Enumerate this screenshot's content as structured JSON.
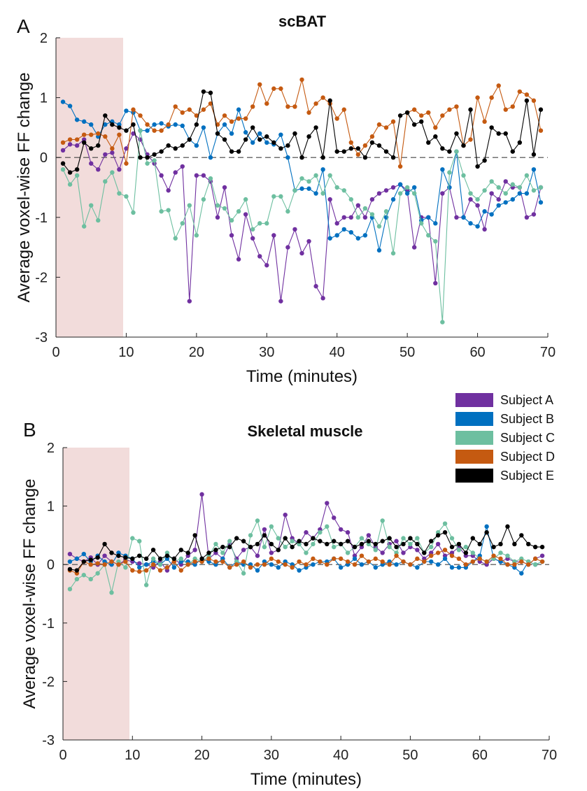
{
  "legend": [
    {
      "name": "Subject A",
      "color": "#7030A0"
    },
    {
      "name": "Subject B",
      "color": "#0070C0"
    },
    {
      "name": "Subject C",
      "color": "#6DBFA0"
    },
    {
      "name": "Subject D",
      "color": "#C55A11"
    },
    {
      "name": "Subject E",
      "color": "#000000"
    }
  ],
  "chart_data": [
    {
      "panel_letter": "A",
      "type": "line",
      "title": "scBAT",
      "xlabel": "Time (minutes)",
      "ylabel": "Average voxel-wise FF change",
      "xlim": [
        0,
        70
      ],
      "ylim": [
        -3,
        2
      ],
      "xticks": [
        0,
        10,
        20,
        30,
        40,
        50,
        60,
        70
      ],
      "yticks": [
        -3,
        -2,
        -1,
        0,
        1,
        2
      ],
      "shaded_region_x": [
        0,
        10
      ],
      "reference_line_y": 0,
      "x": [
        1,
        2,
        3,
        4,
        5,
        6,
        7,
        8,
        9,
        10,
        11,
        12,
        13,
        14,
        15,
        16,
        17,
        18,
        19,
        20,
        21,
        22,
        23,
        24,
        25,
        26,
        27,
        28,
        29,
        30,
        31,
        32,
        33,
        34,
        35,
        36,
        37,
        38,
        39,
        40,
        41,
        42,
        43,
        44,
        45,
        46,
        47,
        48,
        49,
        50,
        51,
        52,
        53,
        54,
        55,
        56,
        57,
        58,
        59,
        60,
        61,
        62,
        63,
        64,
        65,
        66,
        67,
        68,
        69
      ],
      "series": [
        {
          "name": "Subject A",
          "values": [
            0.12,
            0.22,
            0.2,
            0.3,
            -0.1,
            -0.2,
            0.05,
            0.08,
            -0.2,
            0.15,
            0.4,
            0.3,
            0.05,
            -0.1,
            -0.3,
            -0.55,
            -0.25,
            -0.15,
            -2.4,
            -0.3,
            -0.3,
            -0.4,
            -1.0,
            -0.5,
            -1.3,
            -1.7,
            -0.95,
            -1.35,
            -1.65,
            -1.8,
            -1.3,
            -2.4,
            -1.5,
            -1.2,
            -1.6,
            -1.4,
            -2.15,
            -2.35,
            -0.7,
            -1.1,
            -1.0,
            -1.0,
            -0.8,
            -1.0,
            -0.7,
            -0.6,
            -0.55,
            -0.5,
            -0.45,
            -0.55,
            -1.5,
            -1.0,
            -1.0,
            -2.1,
            -0.6,
            -0.5,
            -1.0,
            -1.0,
            -0.7,
            -0.8,
            -1.2,
            -0.6,
            -0.7,
            -0.4,
            -0.5,
            -0.5,
            -1.0,
            -0.95,
            -0.5
          ]
        },
        {
          "name": "Subject B",
          "values": [
            0.93,
            0.86,
            0.63,
            0.6,
            0.55,
            0.35,
            0.55,
            0.6,
            0.55,
            0.78,
            0.75,
            0.45,
            0.45,
            0.55,
            0.57,
            0.52,
            0.55,
            0.53,
            0.3,
            0.2,
            0.5,
            0.0,
            0.4,
            0.55,
            0.4,
            0.8,
            0.42,
            0.25,
            0.4,
            0.25,
            0.22,
            0.38,
            0.0,
            -0.55,
            -0.52,
            -0.52,
            -0.6,
            -0.2,
            -1.35,
            -1.3,
            -1.2,
            -1.25,
            -1.35,
            -1.3,
            -1.0,
            -1.55,
            -1.0,
            -0.7,
            -0.45,
            -0.6,
            -0.5,
            -1.05,
            -1.0,
            -1.1,
            -0.2,
            -0.5,
            0.1,
            -1.0,
            -1.1,
            -1.15,
            -0.9,
            -0.95,
            -0.8,
            -0.75,
            -0.7,
            -0.6,
            -0.6,
            -0.2,
            -0.75
          ]
        },
        {
          "name": "Subject C",
          "values": [
            -0.2,
            -0.45,
            -0.3,
            -1.15,
            -0.8,
            -1.05,
            -0.4,
            -0.25,
            -0.6,
            -0.65,
            -0.92,
            0.45,
            -0.1,
            -0.05,
            -0.9,
            -0.88,
            -1.35,
            -1.1,
            -0.8,
            -1.3,
            -0.7,
            -0.35,
            -0.8,
            -0.85,
            -1.05,
            -0.9,
            -0.7,
            -1.2,
            -1.1,
            -1.1,
            -0.65,
            -0.65,
            -0.9,
            -0.55,
            -0.35,
            -0.4,
            -0.3,
            -0.6,
            -0.3,
            -0.5,
            -0.55,
            -0.7,
            -1.0,
            -0.85,
            -0.95,
            -1.15,
            -0.9,
            -1.6,
            -0.6,
            -0.5,
            -0.6,
            -1.1,
            -1.3,
            -1.4,
            -2.75,
            -0.25,
            0.1,
            -0.3,
            -0.6,
            -0.7,
            -0.55,
            -0.4,
            -0.5,
            -0.6,
            -0.45,
            -0.5,
            -0.3,
            -0.55,
            -0.5
          ]
        },
        {
          "name": "Subject D",
          "values": [
            0.25,
            0.3,
            0.3,
            0.38,
            0.38,
            0.4,
            0.35,
            0.15,
            0.38,
            -0.1,
            0.8,
            0.7,
            0.55,
            0.45,
            0.45,
            0.55,
            0.85,
            0.75,
            0.8,
            0.7,
            0.8,
            0.9,
            0.55,
            0.7,
            0.6,
            0.65,
            0.65,
            0.85,
            1.22,
            0.9,
            1.15,
            1.15,
            0.85,
            0.85,
            1.3,
            0.75,
            0.9,
            1.0,
            0.9,
            0.65,
            0.8,
            0.25,
            0.05,
            0.2,
            0.35,
            0.55,
            0.5,
            0.6,
            -0.15,
            0.75,
            0.8,
            0.7,
            0.75,
            0.5,
            0.7,
            0.8,
            0.85,
            0.2,
            0.3,
            1.0,
            0.6,
            1.0,
            1.2,
            0.8,
            0.85,
            1.1,
            1.05,
            0.95,
            0.45
          ]
        },
        {
          "name": "Subject E",
          "values": [
            -0.1,
            -0.25,
            -0.2,
            0.25,
            0.15,
            0.2,
            0.7,
            0.55,
            0.5,
            0.45,
            0.55,
            0.0,
            0.0,
            0.05,
            0.1,
            0.2,
            0.15,
            0.2,
            0.3,
            0.55,
            1.1,
            1.08,
            0.4,
            0.3,
            0.1,
            0.1,
            0.3,
            0.5,
            0.3,
            0.35,
            0.25,
            0.15,
            0.2,
            0.4,
            0.0,
            0.35,
            0.5,
            0.0,
            0.95,
            0.1,
            0.1,
            0.15,
            0.15,
            0.0,
            0.25,
            0.2,
            0.1,
            0.0,
            0.7,
            0.75,
            0.55,
            0.6,
            0.25,
            0.35,
            0.15,
            0.1,
            0.4,
            0.2,
            0.8,
            -0.15,
            -0.05,
            0.5,
            0.4,
            0.4,
            0.1,
            0.25,
            0.95,
            0.05,
            0.8
          ]
        }
      ]
    },
    {
      "panel_letter": "B",
      "type": "line",
      "title": "Skeletal muscle",
      "xlabel": "Time (minutes)",
      "ylabel": "Average voxel-wise FF change",
      "xlim": [
        0,
        70
      ],
      "ylim": [
        -3,
        2
      ],
      "xticks": [
        0,
        10,
        20,
        30,
        40,
        50,
        60,
        70
      ],
      "yticks": [
        -3,
        -2,
        -1,
        0,
        1,
        2
      ],
      "shaded_region_x": [
        0,
        10
      ],
      "reference_line_y": 0,
      "x": [
        1,
        2,
        3,
        4,
        5,
        6,
        7,
        8,
        9,
        10,
        11,
        12,
        13,
        14,
        15,
        16,
        17,
        18,
        19,
        20,
        21,
        22,
        23,
        24,
        25,
        26,
        27,
        28,
        29,
        30,
        31,
        32,
        33,
        34,
        35,
        36,
        37,
        38,
        39,
        40,
        41,
        42,
        43,
        44,
        45,
        46,
        47,
        48,
        49,
        50,
        51,
        52,
        53,
        54,
        55,
        56,
        57,
        58,
        59,
        60,
        61,
        62,
        63,
        64,
        65,
        66,
        67,
        68,
        69
      ],
      "series": [
        {
          "name": "Subject A",
          "values": [
            0.18,
            0.1,
            0.05,
            0.12,
            0.0,
            0.15,
            0.05,
            0.0,
            0.08,
            0.05,
            0.02,
            0.0,
            -0.05,
            0.05,
            -0.1,
            0.1,
            0.0,
            0.15,
            0.25,
            1.2,
            0.1,
            0.2,
            0.1,
            0.35,
            0.1,
            0.25,
            0.3,
            0.15,
            0.6,
            0.2,
            0.25,
            0.85,
            0.45,
            0.35,
            0.55,
            0.45,
            0.6,
            1.05,
            0.8,
            0.6,
            0.55,
            0.15,
            0.3,
            0.5,
            0.3,
            0.2,
            0.35,
            0.4,
            0.2,
            0.3,
            0.25,
            0.1,
            0.2,
            0.35,
            0.15,
            0.2,
            0.3,
            0.15,
            0.15,
            0.05,
            0.0,
            0.1,
            0.05,
            0.1,
            0.05,
            0.05,
            0.0,
            0.1,
            0.15
          ]
        },
        {
          "name": "Subject B",
          "values": [
            0.05,
            0.1,
            0.18,
            0.05,
            0.15,
            0.05,
            0.0,
            0.2,
            0.15,
            0.1,
            -0.05,
            0.0,
            0.05,
            0.0,
            0.1,
            -0.05,
            0.05,
            0.05,
            0.0,
            0.1,
            0.05,
            0.0,
            0.1,
            -0.05,
            0.05,
            0.0,
            0.0,
            -0.1,
            0.05,
            0.0,
            -0.05,
            0.05,
            0.0,
            -0.1,
            -0.05,
            0.0,
            0.05,
            0.05,
            0.1,
            -0.05,
            0.0,
            0.1,
            0.0,
            0.05,
            -0.05,
            0.0,
            0.05,
            0.0,
            0.05,
            0.0,
            -0.05,
            0.05,
            0.05,
            0.0,
            0.1,
            -0.05,
            -0.05,
            -0.05,
            0.05,
            0.15,
            0.65,
            0.1,
            0.05,
            0.0,
            -0.05,
            -0.15,
            0.05,
            0.0,
            0.05
          ]
        },
        {
          "name": "Subject C",
          "values": [
            -0.42,
            -0.25,
            -0.18,
            -0.25,
            -0.15,
            0.0,
            -0.48,
            0.05,
            -0.05,
            0.45,
            0.4,
            -0.35,
            0.1,
            0.0,
            0.2,
            0.05,
            0.1,
            0.0,
            0.1,
            0.05,
            0.15,
            0.35,
            0.2,
            0.4,
            0.05,
            -0.15,
            0.5,
            0.75,
            0.3,
            0.65,
            0.45,
            0.3,
            0.4,
            0.35,
            0.2,
            0.35,
            0.55,
            0.65,
            0.3,
            0.35,
            0.2,
            0.3,
            0.45,
            0.35,
            0.25,
            0.75,
            0.3,
            0.2,
            0.45,
            0.35,
            0.45,
            0.2,
            0.3,
            0.55,
            0.7,
            0.45,
            0.25,
            0.3,
            0.2,
            0.1,
            0.05,
            0.1,
            0.2,
            0.15,
            0.05,
            0.1,
            0.05,
            0.0,
            0.05
          ]
        },
        {
          "name": "Subject D",
          "values": [
            -0.1,
            -0.15,
            0.05,
            0.0,
            0.02,
            0.0,
            0.05,
            0.0,
            0.05,
            -0.1,
            -0.12,
            -0.1,
            0.0,
            -0.1,
            -0.05,
            0.05,
            -0.1,
            0.0,
            0.05,
            0.05,
            0.1,
            0.05,
            0.05,
            -0.05,
            0.0,
            0.05,
            -0.05,
            0.0,
            0.0,
            0.1,
            0.05,
            0.0,
            -0.05,
            0.05,
            0.0,
            0.1,
            0.05,
            0.0,
            0.1,
            0.1,
            0.05,
            0.0,
            0.15,
            0.05,
            0.1,
            0.05,
            0.0,
            0.15,
            0.05,
            0.0,
            0.1,
            0.05,
            0.15,
            0.2,
            0.25,
            0.15,
            0.1,
            0.0,
            0.05,
            0.1,
            0.05,
            0.15,
            0.1,
            0.0,
            0.0,
            0.05,
            0.0,
            0.1,
            0.05
          ]
        },
        {
          "name": "Subject E",
          "values": [
            -0.08,
            -0.1,
            0.05,
            0.08,
            0.12,
            0.35,
            0.2,
            0.15,
            0.12,
            0.1,
            0.15,
            0.1,
            0.25,
            0.1,
            0.15,
            0.1,
            0.25,
            0.2,
            0.5,
            0.1,
            0.2,
            0.25,
            0.3,
            0.3,
            0.45,
            0.4,
            0.3,
            0.35,
            0.5,
            0.35,
            0.25,
            0.45,
            0.3,
            0.4,
            0.35,
            0.45,
            0.4,
            0.35,
            0.4,
            0.35,
            0.4,
            0.3,
            0.35,
            0.4,
            0.35,
            0.4,
            0.45,
            0.3,
            0.35,
            0.45,
            0.35,
            0.2,
            0.4,
            0.5,
            0.55,
            0.3,
            0.35,
            0.2,
            0.45,
            0.35,
            0.55,
            0.3,
            0.35,
            0.65,
            0.35,
            0.5,
            0.35,
            0.3,
            0.3
          ]
        }
      ]
    }
  ]
}
